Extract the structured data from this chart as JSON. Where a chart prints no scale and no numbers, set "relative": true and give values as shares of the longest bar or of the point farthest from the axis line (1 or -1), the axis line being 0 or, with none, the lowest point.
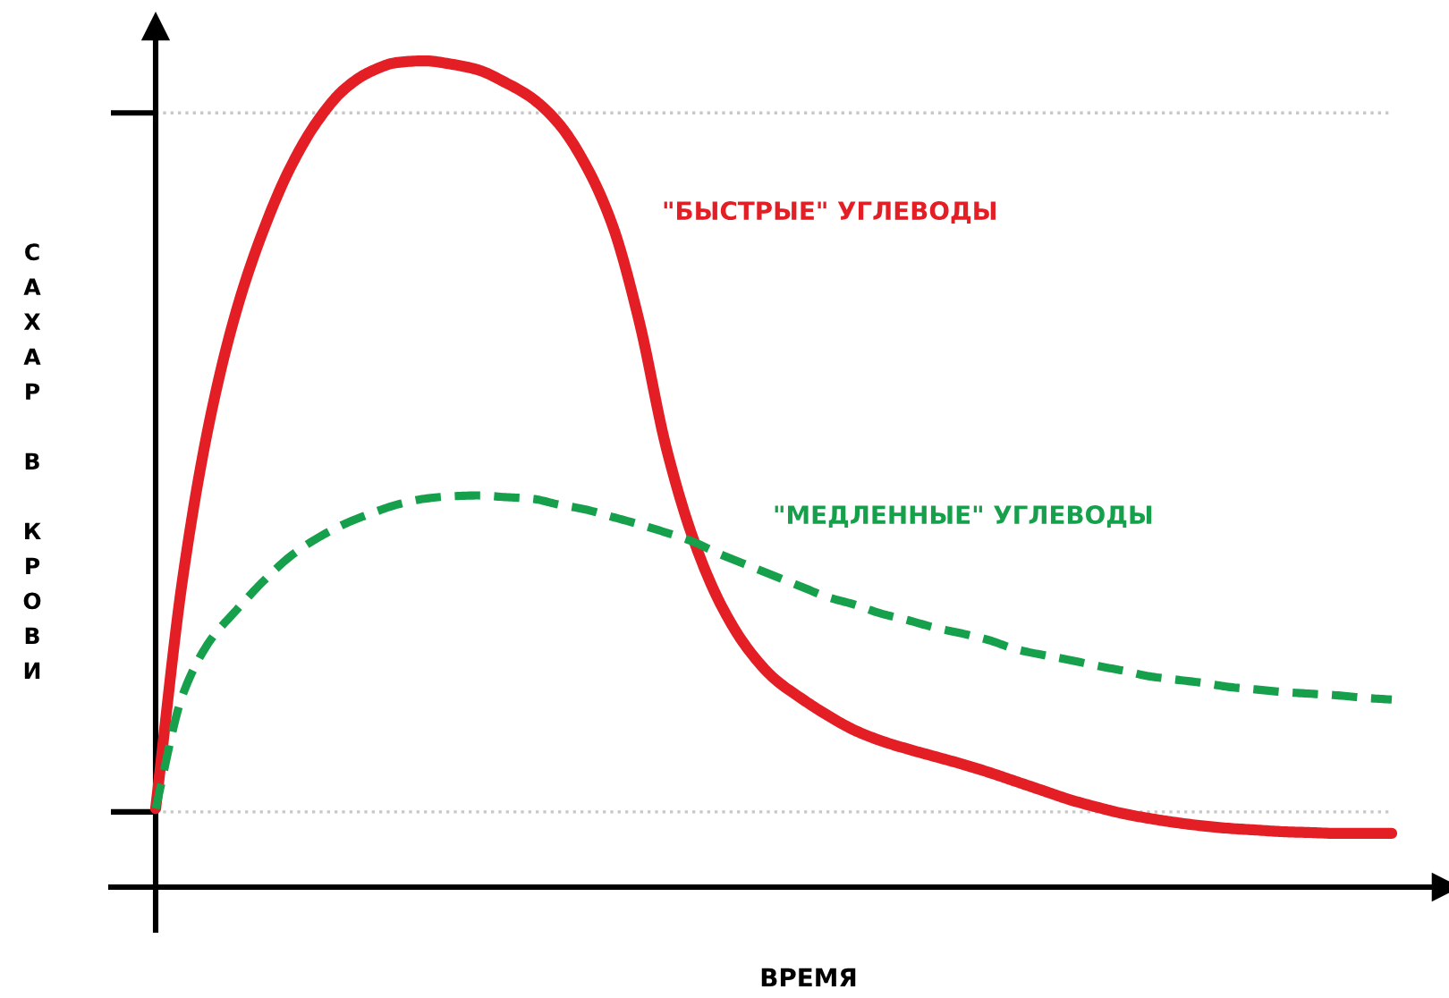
{
  "chart_data": {
    "type": "line",
    "relative": true,
    "xlabel": "ВРЕМЯ",
    "ylabel": "САХАР В КРОВИ",
    "categories": [
      null,
      null,
      null,
      null,
      null,
      null,
      null,
      null,
      null,
      null,
      null,
      null,
      null,
      null,
      null,
      null,
      null,
      null,
      null,
      null,
      null,
      null,
      null,
      null,
      null,
      null,
      null,
      null,
      null,
      null,
      null,
      null,
      null,
      null,
      null,
      null,
      null,
      null,
      null,
      null,
      null,
      null,
      null,
      null,
      null,
      null,
      null
    ],
    "series": [
      {
        "name": "\"БЫСТРЫЕ\" УГЛЕВОДЫ",
        "color": "#e31e24",
        "line_style": "solid",
        "values": [
          0.095,
          0.372,
          0.563,
          0.697,
          0.794,
          0.87,
          0.926,
          0.965,
          0.987,
          0.998,
          1.0,
          0.996,
          0.989,
          0.974,
          0.955,
          0.924,
          0.874,
          0.801,
          0.684,
          0.532,
          0.422,
          0.344,
          0.29,
          0.253,
          0.229,
          0.208,
          0.19,
          0.177,
          0.167,
          0.158,
          0.149,
          0.139,
          0.128,
          0.117,
          0.106,
          0.097,
          0.089,
          0.083,
          0.078,
          0.074,
          0.071,
          0.069,
          0.067,
          0.066,
          0.065,
          0.065,
          0.065
        ]
      },
      {
        "name": "\"МЕДЛЕННЫЕ\" УГЛЕВОДЫ",
        "color": "#16a04c",
        "line_style": "dashed",
        "values": [
          0.095,
          0.232,
          0.297,
          0.335,
          0.37,
          0.4,
          0.422,
          0.439,
          0.452,
          0.463,
          0.47,
          0.473,
          0.474,
          0.472,
          0.47,
          0.463,
          0.457,
          0.448,
          0.439,
          0.429,
          0.418,
          0.403,
          0.39,
          0.377,
          0.364,
          0.351,
          0.342,
          0.331,
          0.323,
          0.314,
          0.307,
          0.299,
          0.288,
          0.281,
          0.275,
          0.268,
          0.262,
          0.255,
          0.251,
          0.247,
          0.242,
          0.239,
          0.236,
          0.234,
          0.232,
          0.229,
          0.227
        ]
      }
    ],
    "ref_lines": [
      {
        "axis": "y",
        "value": 0.937,
        "color": "#c8c8c8",
        "line_style": "dotted"
      },
      {
        "axis": "y",
        "value": 0.091,
        "color": "#c8c8c8",
        "line_style": "dotted"
      }
    ]
  }
}
